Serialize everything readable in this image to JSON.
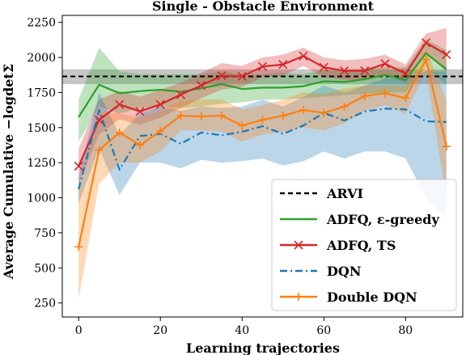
{
  "chart_data": {
    "type": "line",
    "title": "Single - Obstacle Environment",
    "xlabel": "Learning trajectories",
    "ylabel": "Average Cumulative −logdetΣ",
    "xlim": [
      -4,
      94
    ],
    "ylim": [
      150,
      2300
    ],
    "x_ticks": [
      0,
      20,
      40,
      60,
      80
    ],
    "y_ticks": [
      250,
      500,
      750,
      1000,
      1250,
      1500,
      1750,
      2000,
      2250
    ],
    "legend_position": "lower-right",
    "grid": false,
    "series": [
      {
        "name": "ARVI",
        "kind": "hline",
        "color": "#000000",
        "dash": "dashed",
        "value": 1865,
        "band": [
          1810,
          1915
        ]
      },
      {
        "name": "ADFQ, ε-greedy",
        "color": "#2ca02c",
        "marker": "none",
        "x": [
          0,
          5,
          10,
          15,
          20,
          25,
          30,
          35,
          40,
          45,
          50,
          55,
          60,
          65,
          70,
          75,
          80,
          85,
          90
        ],
        "y": [
          1575,
          1805,
          1745,
          1760,
          1770,
          1755,
          1780,
          1810,
          1775,
          1785,
          1785,
          1795,
          1830,
          1825,
          1845,
          1875,
          1840,
          2030,
          1915
        ],
        "lower": [
          1400,
          1650,
          1600,
          1640,
          1650,
          1640,
          1650,
          1670,
          1680,
          1700,
          1700,
          1710,
          1720,
          1730,
          1740,
          1750,
          1750,
          1930,
          1800
        ],
        "upper": [
          1700,
          2070,
          1900,
          1880,
          1880,
          1880,
          1880,
          1900,
          1880,
          1880,
          1890,
          1880,
          1910,
          1910,
          1920,
          1930,
          1930,
          2130,
          2050
        ]
      },
      {
        "name": "ADFQ, TS",
        "color": "#d62728",
        "marker": "x",
        "x": [
          0,
          5,
          10,
          15,
          20,
          25,
          30,
          35,
          40,
          45,
          50,
          55,
          60,
          65,
          70,
          75,
          80,
          85,
          90
        ],
        "y": [
          1225,
          1555,
          1665,
          1615,
          1665,
          1735,
          1800,
          1870,
          1865,
          1935,
          1950,
          2010,
          1930,
          1905,
          1905,
          1955,
          1885,
          2105,
          2020
        ],
        "lower": [
          1100,
          1450,
          1560,
          1520,
          1570,
          1640,
          1710,
          1770,
          1790,
          1860,
          1870,
          1940,
          1860,
          1840,
          1840,
          1880,
          1820,
          2030,
          1900
        ],
        "upper": [
          1350,
          1700,
          1760,
          1720,
          1770,
          1820,
          1890,
          1960,
          1940,
          2000,
          2020,
          2070,
          2000,
          1980,
          1990,
          2020,
          1950,
          2170,
          2210
        ]
      },
      {
        "name": "DQN",
        "color": "#1f77b4",
        "dash": "dashdot",
        "marker": "none",
        "x": [
          0,
          5,
          10,
          15,
          20,
          25,
          30,
          35,
          40,
          45,
          50,
          55,
          60,
          65,
          70,
          75,
          80,
          85,
          90
        ],
        "y": [
          1060,
          1625,
          1200,
          1440,
          1455,
          1385,
          1465,
          1445,
          1470,
          1510,
          1455,
          1515,
          1605,
          1550,
          1615,
          1635,
          1630,
          1545,
          1540
        ],
        "lower": [
          960,
          1350,
          1020,
          1250,
          1250,
          1210,
          1270,
          1250,
          1260,
          1280,
          1230,
          1260,
          1330,
          1280,
          1330,
          1330,
          1280,
          1000,
          850
        ],
        "upper": [
          1150,
          1750,
          1450,
          1600,
          1650,
          1620,
          1650,
          1640,
          1650,
          1700,
          1650,
          1720,
          1800,
          1750,
          1800,
          1850,
          1850,
          1900,
          1900
        ]
      },
      {
        "name": "Double DQN",
        "color": "#ff7f0e",
        "marker": "+",
        "x": [
          0,
          5,
          10,
          15,
          20,
          25,
          30,
          35,
          40,
          45,
          50,
          55,
          60,
          65,
          70,
          75,
          80,
          85,
          90
        ],
        "y": [
          650,
          1340,
          1465,
          1375,
          1475,
          1585,
          1580,
          1585,
          1515,
          1555,
          1585,
          1625,
          1605,
          1650,
          1725,
          1745,
          1710,
          1985,
          1365
        ],
        "lower": [
          280,
          1100,
          1250,
          1250,
          1330,
          1480,
          1480,
          1470,
          1400,
          1450,
          1470,
          1500,
          1480,
          1530,
          1620,
          1660,
          1600,
          1900,
          1000
        ],
        "upper": [
          1080,
          1620,
          1600,
          1570,
          1620,
          1690,
          1700,
          1700,
          1630,
          1660,
          1700,
          1750,
          1740,
          1780,
          1800,
          1800,
          1800,
          2060,
          1700
        ]
      }
    ]
  }
}
